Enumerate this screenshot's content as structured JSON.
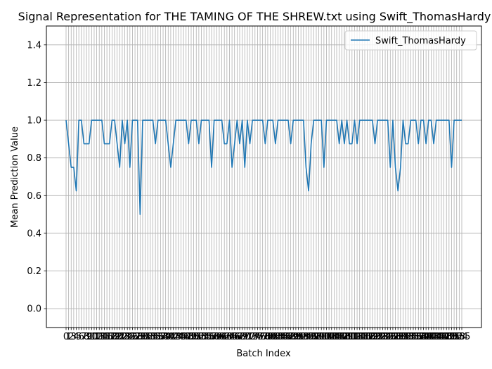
{
  "chart_data": {
    "type": "line",
    "title": "Signal Representation for THE TAMING OF THE SHREW.txt using Swift_ThomasHardy",
    "xlabel": "Batch Index",
    "ylabel": "Mean Prediction Value",
    "ylim": [
      -0.1,
      1.5
    ],
    "yticks": [
      0.0,
      0.2,
      0.4,
      0.6,
      0.8,
      1.0,
      1.2,
      1.4
    ],
    "ytick_labels": [
      "0.0",
      "0.2",
      "0.4",
      "0.6",
      "0.8",
      "1.0",
      "1.2",
      "1.4"
    ],
    "grid": true,
    "legend_position": "top-right",
    "line_color": "#1f77b4",
    "series": [
      {
        "name": "Swift_ThomasHardy",
        "values": [
          1.0,
          0.875,
          0.75,
          0.75,
          0.625,
          1.0,
          1.0,
          0.875,
          0.875,
          0.875,
          1.0,
          1.0,
          1.0,
          1.0,
          1.0,
          0.875,
          0.875,
          0.875,
          1.0,
          1.0,
          0.875,
          0.75,
          1.0,
          0.875,
          1.0,
          0.75,
          1.0,
          1.0,
          1.0,
          0.5,
          1.0,
          1.0,
          1.0,
          1.0,
          1.0,
          0.875,
          1.0,
          1.0,
          1.0,
          1.0,
          0.875,
          0.75,
          0.875,
          1.0,
          1.0,
          1.0,
          1.0,
          1.0,
          0.875,
          1.0,
          1.0,
          1.0,
          0.875,
          1.0,
          1.0,
          1.0,
          1.0,
          0.75,
          1.0,
          1.0,
          1.0,
          1.0,
          0.875,
          0.875,
          1.0,
          0.75,
          0.875,
          1.0,
          0.875,
          1.0,
          0.75,
          1.0,
          0.875,
          1.0,
          1.0,
          1.0,
          1.0,
          1.0,
          0.875,
          1.0,
          1.0,
          1.0,
          0.875,
          1.0,
          1.0,
          1.0,
          1.0,
          1.0,
          0.875,
          1.0,
          1.0,
          1.0,
          1.0,
          1.0,
          0.75,
          0.625,
          0.875,
          1.0,
          1.0,
          1.0,
          1.0,
          0.75,
          1.0,
          1.0,
          1.0,
          1.0,
          1.0,
          0.875,
          1.0,
          0.875,
          1.0,
          0.875,
          0.875,
          1.0,
          0.875,
          1.0,
          1.0,
          1.0,
          1.0,
          1.0,
          1.0,
          0.875,
          1.0,
          1.0,
          1.0,
          1.0,
          1.0,
          0.75,
          1.0,
          0.75,
          0.625,
          0.75,
          1.0,
          0.875,
          0.875,
          1.0,
          1.0,
          1.0,
          0.875,
          1.0,
          1.0,
          0.875,
          1.0,
          1.0,
          0.875,
          1.0,
          1.0,
          1.0,
          1.0,
          1.0,
          1.0,
          0.75,
          1.0,
          1.0,
          1.0,
          1.0
        ]
      }
    ]
  }
}
